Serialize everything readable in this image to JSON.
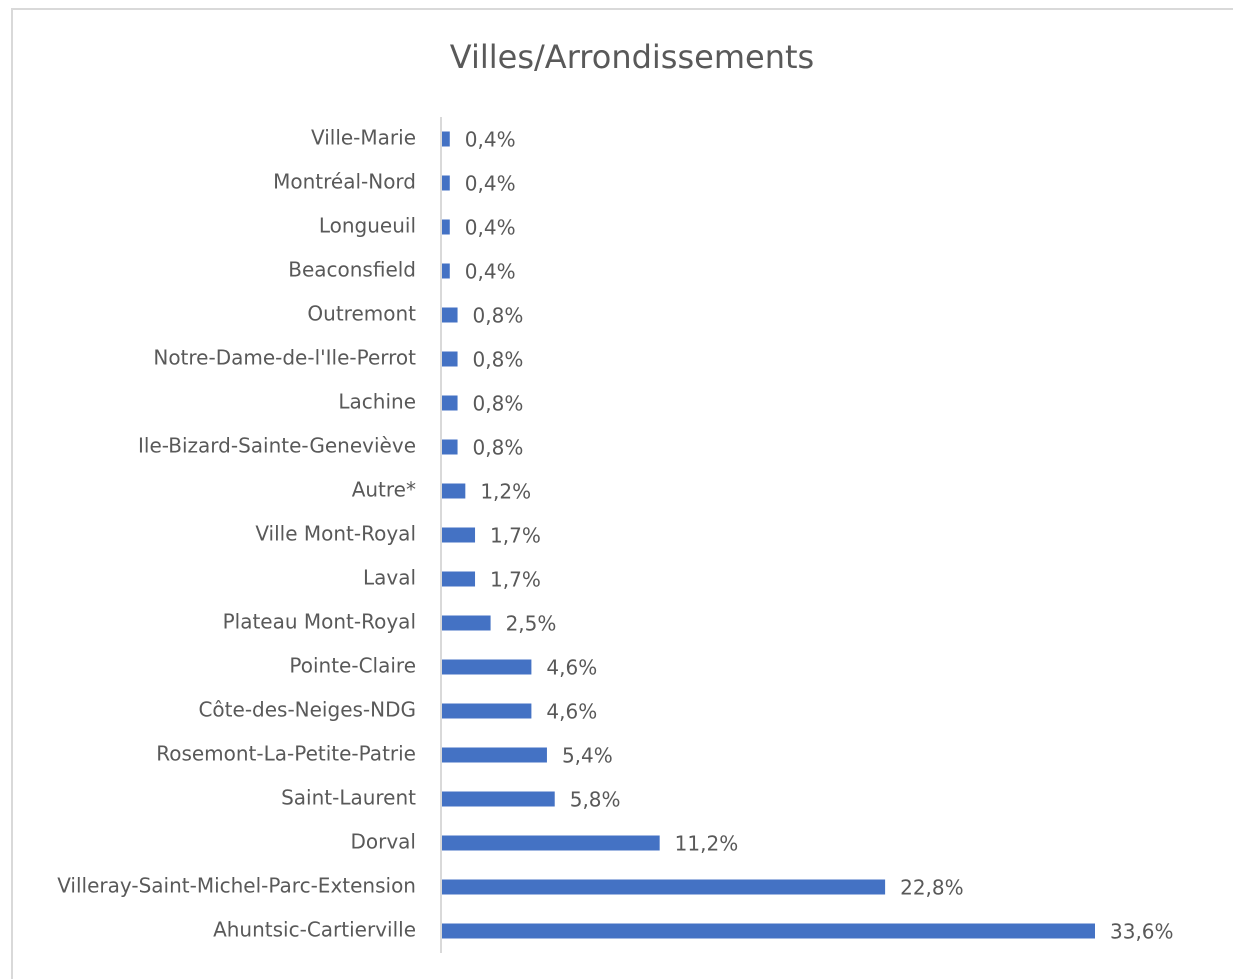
{
  "chart_data": {
    "type": "hbar",
    "title": "Villes/Arrondissements",
    "categories": [
      "Ville-Marie",
      "Montréal-Nord",
      "Longueuil",
      "Beaconsfield",
      "Outremont",
      "Notre-Dame-de-l'Ile-Perrot",
      "Lachine",
      "Ile-Bizard-Sainte-Geneviève",
      "Autre*",
      "Ville Mont-Royal",
      "Laval",
      "Plateau Mont-Royal",
      "Pointe-Claire",
      "Côte-des-Neiges-NDG",
      "Rosemont-La-Petite-Patrie",
      "Saint-Laurent",
      "Dorval",
      "Villeray-Saint-Michel-Parc-Extension",
      "Ahuntsic-Cartierville"
    ],
    "values": [
      0.4,
      0.4,
      0.4,
      0.4,
      0.8,
      0.8,
      0.8,
      0.8,
      1.2,
      1.7,
      1.7,
      2.5,
      4.6,
      4.6,
      5.4,
      5.8,
      11.2,
      22.8,
      33.6
    ],
    "value_labels": [
      "0,4%",
      "0,4%",
      "0,4%",
      "0,4%",
      "0,8%",
      "0,8%",
      "0,8%",
      "0,8%",
      "1,2%",
      "1,7%",
      "1,7%",
      "2,5%",
      "4,6%",
      "4,6%",
      "5,4%",
      "5,8%",
      "11,2%",
      "22,8%",
      "33,6%"
    ],
    "color": "#4472c4"
  }
}
